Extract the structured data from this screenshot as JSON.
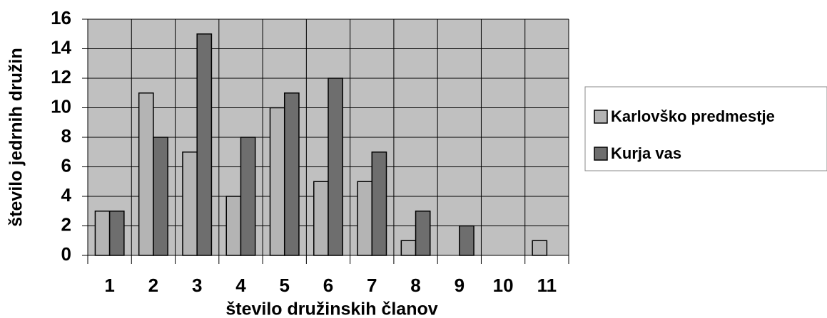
{
  "chart_data": {
    "type": "bar",
    "x_label": "število družinskih članov",
    "y_label": "število jedrnih družin",
    "categories": [
      "1",
      "2",
      "3",
      "4",
      "5",
      "6",
      "7",
      "8",
      "9",
      "10",
      "11"
    ],
    "series": [
      {
        "name": "Karlovško predmestje",
        "color": "#b4b4b4",
        "values": [
          3,
          11,
          7,
          4,
          10,
          5,
          5,
          1,
          0,
          0,
          1
        ]
      },
      {
        "name": "Kurja vas",
        "color": "#6e6e6e",
        "values": [
          3,
          8,
          15,
          8,
          11,
          12,
          7,
          3,
          2,
          0,
          0
        ]
      }
    ],
    "ylim": [
      0,
      16
    ],
    "yticks": [
      0,
      2,
      4,
      6,
      8,
      10,
      12,
      14,
      16
    ],
    "grid": true,
    "legend": "right"
  }
}
